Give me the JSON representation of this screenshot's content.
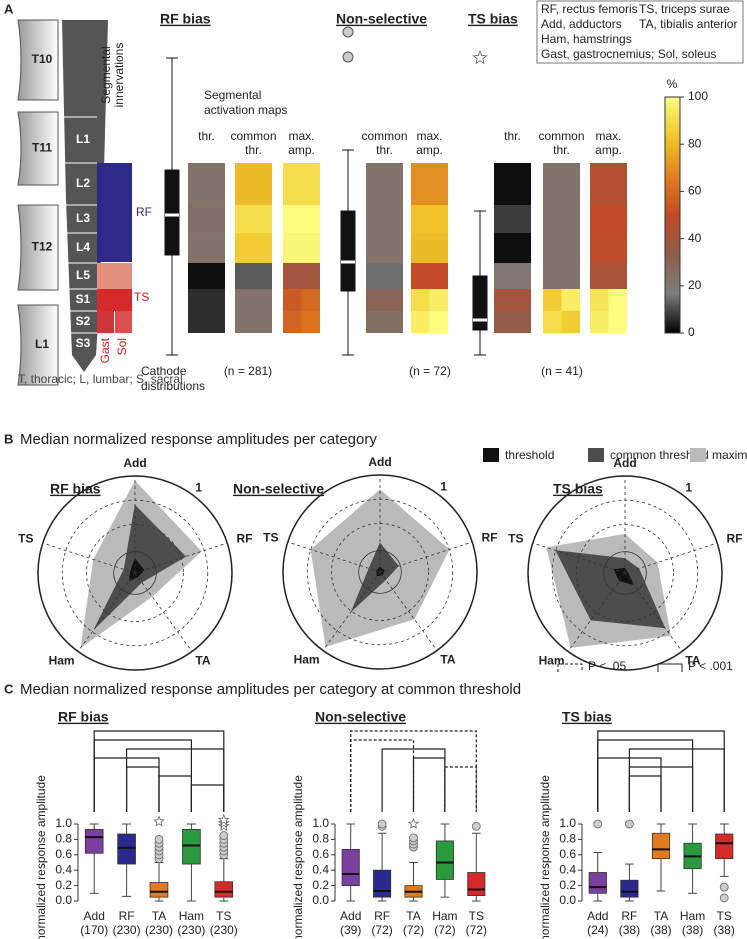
{
  "panel_labels": [
    "A",
    "B",
    "C"
  ],
  "panel_a": {
    "abbreviations": [
      "RF, rectus femoris",
      "TS, triceps surae",
      "Add, adductors",
      "TA, tibialis anterior",
      "Ham, hamstrings",
      "Gast, gastrocnemius; Sol, soleus"
    ],
    "vertebrae": [
      "T10",
      "T11",
      "T12",
      "L1"
    ],
    "segments": [
      "L1",
      "L2",
      "L3",
      "L4",
      "L5",
      "S1",
      "S2",
      "S3"
    ],
    "innervation_title": [
      "Segmental",
      "innervations"
    ],
    "innervation_labels": [
      "RF",
      "TS",
      "Gast",
      "Sol"
    ],
    "maps_title": [
      "Segmental",
      "activation maps"
    ],
    "cathode_label": [
      "Cathode",
      "distributions"
    ],
    "footnote": "T, thoracic; L, lumbar; S, sacral",
    "colorbar": {
      "unit": "%",
      "ylim": [
        0,
        100
      ],
      "ticks": [
        0,
        20,
        40,
        60,
        80,
        100
      ],
      "colormap": [
        "#000000",
        "#7d7d7d",
        "#8d5e4a",
        "#c24a26",
        "#e0801e",
        "#f0c82a",
        "#fdfd80"
      ]
    },
    "groups": [
      {
        "title": "RF bias",
        "n_label": "(n = 281)",
        "maps": [
          {
            "label": [
              "thr."
            ],
            "values": [
              [
                22,
                22
              ],
              [
                24,
                24
              ],
              [
                22,
                22
              ],
              [
                2,
                2
              ],
              [
                6,
                6
              ],
              [
                6,
                6
              ]
            ]
          },
          {
            "label": [
              "common",
              "thr."
            ],
            "values": [
              [
                80,
                80
              ],
              [
                90,
                90
              ],
              [
                85,
                85
              ],
              [
                12,
                12
              ],
              [
                22,
                22
              ],
              [
                22,
                22
              ]
            ]
          },
          {
            "label": [
              "max.",
              "amp."
            ],
            "values": [
              [
                90,
                90
              ],
              [
                100,
                100
              ],
              [
                98,
                98
              ],
              [
                40,
                40
              ],
              [
                55,
                60
              ],
              [
                58,
                62
              ]
            ]
          }
        ]
      },
      {
        "title": "Non-selective",
        "n_label": "(n = 72)",
        "maps": [
          {
            "label": [
              "common",
              "thr."
            ],
            "values": [
              [
                22,
                22
              ],
              [
                22,
                22
              ],
              [
                22,
                22
              ],
              [
                15,
                15
              ],
              [
                30,
                30
              ],
              [
                25,
                25
              ]
            ]
          },
          {
            "label": [
              "max.",
              "amp."
            ],
            "values": [
              [
                70,
                70
              ],
              [
                82,
                82
              ],
              [
                80,
                80
              ],
              [
                50,
                50
              ],
              [
                90,
                95
              ],
              [
                95,
                100
              ]
            ]
          }
        ]
      },
      {
        "title": "TS bias",
        "n_label": "(n = 41)",
        "maps": [
          {
            "label": [
              "thr."
            ],
            "values": [
              [
                2,
                2
              ],
              [
                8,
                8
              ],
              [
                2,
                2
              ],
              [
                20,
                20
              ],
              [
                40,
                40
              ],
              [
                35,
                35
              ]
            ]
          },
          {
            "label": [
              "common",
              "thr."
            ],
            "values": [
              [
                22,
                22
              ],
              [
                22,
                22
              ],
              [
                22,
                22
              ],
              [
                22,
                22
              ],
              [
                85,
                95
              ],
              [
                90,
                85
              ]
            ]
          },
          {
            "label": [
              "max.",
              "amp."
            ],
            "values": [
              [
                45,
                45
              ],
              [
                50,
                50
              ],
              [
                48,
                48
              ],
              [
                42,
                42
              ],
              [
                92,
                100
              ],
              [
                95,
                100
              ]
            ]
          }
        ]
      }
    ]
  },
  "panel_b": {
    "title": "Median normalized response amplitudes per category"
  },
  "panel_c": {
    "title": "Median normalized response amplitudes per category at common threshold",
    "significance_legend": [
      {
        "label": "P < .05",
        "style": "dashed"
      },
      {
        "label": "P < .001",
        "style": "solid"
      }
    ]
  },
  "chart_data": [
    {
      "type": "radar",
      "title": "RF bias",
      "axes": [
        "Add",
        "RF",
        "TA",
        "Ham",
        "TS"
      ],
      "rlim": [
        0,
        1
      ],
      "rticks": [
        1
      ],
      "series": [
        {
          "name": "threshold",
          "color": "#111111",
          "values": [
            0.15,
            0.1,
            0.05,
            0.1,
            0.05
          ]
        },
        {
          "name": "common threshold",
          "color": "#4d4d4d",
          "values": [
            0.7,
            0.55,
            0.12,
            0.72,
            0.12
          ]
        },
        {
          "name": "maximum amplitude",
          "color": "#bababa",
          "values": [
            0.95,
            0.72,
            0.3,
            0.95,
            0.45
          ]
        }
      ]
    },
    {
      "type": "radar",
      "title": "Non-selective",
      "axes": [
        "Add",
        "RF",
        "TA",
        "Ham",
        "TS"
      ],
      "rlim": [
        0,
        1
      ],
      "rticks": [
        1
      ],
      "series": [
        {
          "name": "threshold",
          "color": "#111111",
          "values": [
            0.05,
            0.05,
            0.04,
            0.05,
            0.04
          ]
        },
        {
          "name": "common threshold",
          "color": "#4d4d4d",
          "values": [
            0.3,
            0.2,
            0.1,
            0.5,
            0.12
          ]
        },
        {
          "name": "maximum amplitude",
          "color": "#bababa",
          "values": [
            0.85,
            0.75,
            0.6,
            0.95,
            0.75
          ]
        }
      ]
    },
    {
      "type": "radar",
      "title": "TS bias",
      "axes": [
        "Add",
        "RF",
        "TA",
        "Ham",
        "TS"
      ],
      "rlim": [
        0,
        1
      ],
      "rticks": [
        1
      ],
      "series": [
        {
          "name": "threshold",
          "color": "#111111",
          "values": [
            0.05,
            0.03,
            0.15,
            0.1,
            0.12
          ]
        },
        {
          "name": "common threshold",
          "color": "#4d4d4d",
          "values": [
            0.15,
            0.15,
            0.7,
            0.6,
            0.75
          ]
        },
        {
          "name": "maximum amplitude",
          "color": "#bababa",
          "values": [
            0.4,
            0.35,
            0.8,
            0.95,
            0.85
          ]
        }
      ]
    },
    {
      "type": "box",
      "title": "RF bias",
      "y_label": "normalized response amplitude",
      "categories": [
        "Add",
        "RF",
        "TA",
        "Ham",
        "TS"
      ],
      "n_labels": [
        "(170)",
        "(230)",
        "(230)",
        "(230)",
        "(230)"
      ],
      "colors": [
        "#7b3f9e",
        "#2b2a8c",
        "#e07b20",
        "#2a9a3e",
        "#d42a2a"
      ],
      "ylim": [
        0,
        1
      ],
      "yticks": [
        {
          "value": 0,
          "label": "0.0"
        },
        {
          "value": 0.2,
          "label": "0.2"
        },
        {
          "value": 0.4,
          "label": "0.4"
        },
        {
          "value": 0.6,
          "label": "0.6"
        },
        {
          "value": 0.8,
          "label": "0.8"
        },
        {
          "value": 1,
          "label": "1.0"
        }
      ],
      "boxes": [
        {
          "whisker_low": 0.1,
          "q1": 0.62,
          "median": 0.83,
          "q3": 0.93,
          "whisker_high": 1.0,
          "outliers": [],
          "extreme_outliers": []
        },
        {
          "whisker_low": 0.06,
          "q1": 0.48,
          "median": 0.69,
          "q3": 0.87,
          "whisker_high": 1.0,
          "outliers": [],
          "extreme_outliers": []
        },
        {
          "whisker_low": 0.0,
          "q1": 0.05,
          "median": 0.12,
          "q3": 0.24,
          "whisker_high": 0.5,
          "outliers": [
            0.55,
            0.6,
            0.65,
            0.7,
            0.75,
            0.8
          ],
          "extreme_outliers": [
            0.98
          ]
        },
        {
          "whisker_low": 0.0,
          "q1": 0.48,
          "median": 0.72,
          "q3": 0.93,
          "whisker_high": 1.0,
          "outliers": [],
          "extreme_outliers": []
        },
        {
          "whisker_low": 0.0,
          "q1": 0.05,
          "median": 0.12,
          "q3": 0.25,
          "whisker_high": 0.55,
          "outliers": [
            0.6,
            0.65,
            0.7,
            0.75,
            0.8,
            0.85
          ],
          "extreme_outliers": [
            0.92,
            0.96,
            1.0
          ]
        }
      ],
      "brackets": [
        {
          "pair": [
            0,
            4
          ],
          "level": 1
        },
        {
          "pair": [
            0,
            3
          ],
          "level": 1
        },
        {
          "pair": [
            1,
            4
          ],
          "level": 1
        },
        {
          "pair": [
            0,
            2
          ],
          "level": 1
        },
        {
          "pair": [
            1,
            2
          ],
          "level": 1
        },
        {
          "pair": [
            2,
            3
          ],
          "level": 1
        },
        {
          "pair": [
            3,
            4
          ],
          "level": 1
        }
      ]
    },
    {
      "type": "box",
      "title": "Non-selective",
      "y_label": "normalized response amplitude",
      "categories": [
        "Add",
        "RF",
        "TA",
        "Ham",
        "TS"
      ],
      "n_labels": [
        "(39)",
        "(72)",
        "(72)",
        "(72)",
        "(72)"
      ],
      "colors": [
        "#7b3f9e",
        "#2b2a8c",
        "#e07b20",
        "#2a9a3e",
        "#d42a2a"
      ],
      "ylim": [
        0,
        1
      ],
      "yticks": [
        {
          "value": 0,
          "label": "0.0"
        },
        {
          "value": 0.2,
          "label": "0.2"
        },
        {
          "value": 0.4,
          "label": "0.4"
        },
        {
          "value": 0.6,
          "label": "0.6"
        },
        {
          "value": 0.8,
          "label": "0.8"
        },
        {
          "value": 1,
          "label": "1.0"
        }
      ],
      "boxes": [
        {
          "whisker_low": 0.0,
          "q1": 0.2,
          "median": 0.35,
          "q3": 0.67,
          "whisker_high": 1.0,
          "outliers": [],
          "extreme_outliers": []
        },
        {
          "whisker_low": 0.0,
          "q1": 0.05,
          "median": 0.13,
          "q3": 0.4,
          "whisker_high": 0.88,
          "outliers": [
            0.97,
            1.0
          ],
          "extreme_outliers": []
        },
        {
          "whisker_low": 0.0,
          "q1": 0.05,
          "median": 0.12,
          "q3": 0.2,
          "whisker_high": 0.5,
          "outliers": [
            0.7,
            0.74,
            0.78,
            0.82
          ],
          "extreme_outliers": [
            0.95
          ]
        },
        {
          "whisker_low": 0.05,
          "q1": 0.28,
          "median": 0.5,
          "q3": 0.78,
          "whisker_high": 1.0,
          "outliers": [],
          "extreme_outliers": []
        },
        {
          "whisker_low": 0.0,
          "q1": 0.07,
          "median": 0.15,
          "q3": 0.37,
          "whisker_high": 0.88,
          "outliers": [
            0.97
          ],
          "extreme_outliers": []
        }
      ],
      "brackets": [
        {
          "pair": [
            0,
            4
          ],
          "level": 0
        },
        {
          "pair": [
            0,
            2
          ],
          "level": 0
        },
        {
          "pair": [
            1,
            3
          ],
          "level": 1
        },
        {
          "pair": [
            2,
            3
          ],
          "level": 1
        },
        {
          "pair": [
            3,
            4
          ],
          "level": 0
        }
      ]
    },
    {
      "type": "box",
      "title": "TS bias",
      "y_label": "normalized response amplitude",
      "categories": [
        "Add",
        "RF",
        "TA",
        "Ham",
        "TS"
      ],
      "n_labels": [
        "(24)",
        "(38)",
        "(38)",
        "(38)",
        "(38)"
      ],
      "colors": [
        "#7b3f9e",
        "#2b2a8c",
        "#e07b20",
        "#2a9a3e",
        "#d42a2a"
      ],
      "ylim": [
        0,
        1
      ],
      "yticks": [
        {
          "value": 0,
          "label": "0.0"
        },
        {
          "value": 0.2,
          "label": "0.2"
        },
        {
          "value": 0.4,
          "label": "0.4"
        },
        {
          "value": 0.6,
          "label": "0.6"
        },
        {
          "value": 0.8,
          "label": "0.8"
        },
        {
          "value": 1,
          "label": "1.0"
        }
      ],
      "boxes": [
        {
          "whisker_low": 0.0,
          "q1": 0.1,
          "median": 0.18,
          "q3": 0.37,
          "whisker_high": 0.63,
          "outliers": [
            1.0
          ],
          "extreme_outliers": []
        },
        {
          "whisker_low": 0.0,
          "q1": 0.05,
          "median": 0.12,
          "q3": 0.27,
          "whisker_high": 0.48,
          "outliers": [
            1.0
          ],
          "extreme_outliers": []
        },
        {
          "whisker_low": 0.13,
          "q1": 0.55,
          "median": 0.67,
          "q3": 0.88,
          "whisker_high": 1.0,
          "outliers": [],
          "extreme_outliers": []
        },
        {
          "whisker_low": 0.1,
          "q1": 0.42,
          "median": 0.58,
          "q3": 0.75,
          "whisker_high": 1.0,
          "outliers": [],
          "extreme_outliers": []
        },
        {
          "whisker_low": 0.32,
          "q1": 0.55,
          "median": 0.75,
          "q3": 0.87,
          "whisker_high": 1.0,
          "outliers": [
            0.18,
            0.04
          ],
          "extreme_outliers": []
        }
      ],
      "brackets": [
        {
          "pair": [
            0,
            4
          ],
          "level": 1
        },
        {
          "pair": [
            0,
            3
          ],
          "level": 1
        },
        {
          "pair": [
            1,
            4
          ],
          "level": 1
        },
        {
          "pair": [
            0,
            2
          ],
          "level": 1
        },
        {
          "pair": [
            1,
            3
          ],
          "level": 1
        },
        {
          "pair": [
            1,
            2
          ],
          "level": 1
        }
      ]
    }
  ]
}
